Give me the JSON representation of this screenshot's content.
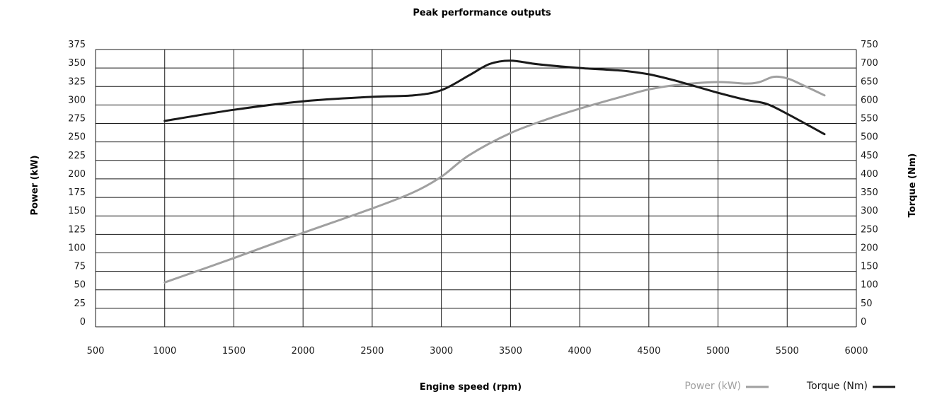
{
  "chart_data": {
    "type": "line",
    "title": "Peak performance outputs",
    "xlabel": "Engine speed (rpm)",
    "ylabel_left": "Power (kW)",
    "ylabel_right": "Torque (Nm)",
    "xlim": [
      500,
      6000
    ],
    "ylim_left": [
      0,
      375
    ],
    "ylim_right": [
      0,
      750
    ],
    "grid": true,
    "legend_position": "bottom-right",
    "x_ticks": [
      "500",
      "1000",
      "1500",
      "2000",
      "2500",
      "3000",
      "3500",
      "4000",
      "4500",
      "5000",
      "5500",
      "6000"
    ],
    "y_ticks_left": [
      "0",
      "25",
      "50",
      "75",
      "100",
      "125",
      "150",
      "175",
      "200",
      "225",
      "250",
      "275",
      "300",
      "325",
      "350",
      "375"
    ],
    "y_ticks_right": [
      "0",
      "50",
      "100",
      "150",
      "200",
      "250",
      "300",
      "350",
      "400",
      "450",
      "500",
      "550",
      "600",
      "650",
      "700",
      "750"
    ],
    "series": [
      {
        "name": "Power (kW)",
        "axis": "left",
        "color": "#a0a0a0",
        "x": [
          1000,
          1500,
          2000,
          2500,
          2800,
          3000,
          3200,
          3500,
          3800,
          4000,
          4300,
          4500,
          4700,
          5000,
          5200,
          5300,
          5400,
          5500,
          5600,
          5770
        ],
        "y": [
          60,
          93,
          127,
          160,
          182,
          203,
          232,
          262,
          283,
          295,
          311,
          321,
          327,
          331,
          329,
          331,
          338,
          336,
          328,
          313
        ]
      },
      {
        "name": "Torque (Nm)",
        "axis": "right",
        "color": "#1a1a1a",
        "x": [
          1000,
          1500,
          2000,
          2500,
          2800,
          3000,
          3200,
          3350,
          3500,
          3700,
          4000,
          4300,
          4500,
          4700,
          5000,
          5200,
          5350,
          5500,
          5770
        ],
        "y": [
          557,
          587,
          610,
          622,
          626,
          640,
          680,
          711,
          720,
          710,
          700,
          693,
          683,
          665,
          633,
          614,
          603,
          576,
          521
        ]
      }
    ]
  }
}
